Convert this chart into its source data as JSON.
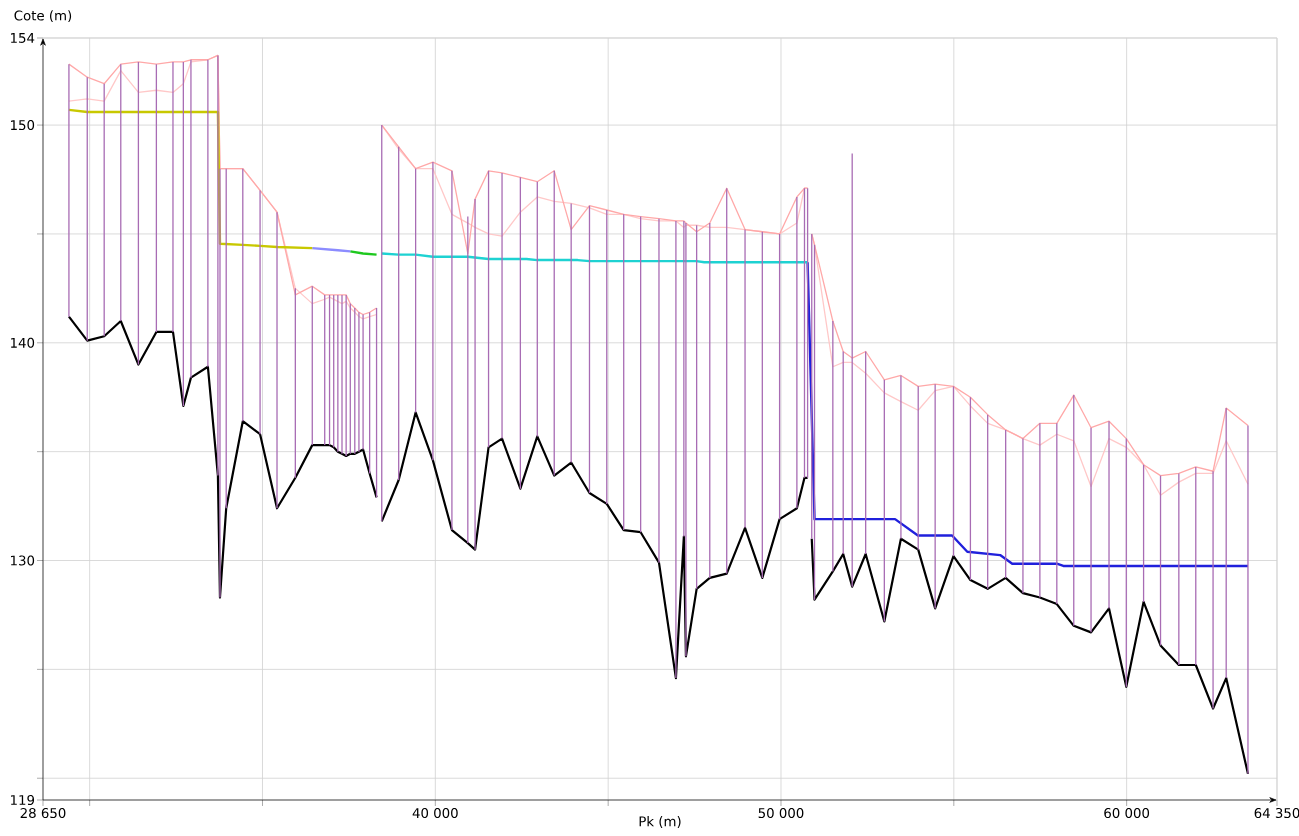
{
  "chart_data": {
    "type": "line",
    "xlabel": "Pk (m)",
    "ylabel": "Cote (m)",
    "xlim": [
      28650,
      64350
    ],
    "ylim": [
      119,
      154
    ],
    "xticks": [
      {
        "value": 28650,
        "label": "28 650"
      },
      {
        "value": 30000,
        "label": null
      },
      {
        "value": 35000,
        "label": null
      },
      {
        "value": 40000,
        "label": "40 000"
      },
      {
        "value": 45000,
        "label": null
      },
      {
        "value": 50000,
        "label": "50 000"
      },
      {
        "value": 55000,
        "label": null
      },
      {
        "value": 60000,
        "label": "60 000"
      },
      {
        "value": 64350,
        "label": "64 350"
      }
    ],
    "yticks": [
      119,
      {
        "value": 120,
        "label": null
      },
      {
        "value": 125,
        "label": null
      },
      130,
      {
        "value": 135,
        "label": null
      },
      140,
      {
        "value": 145,
        "label": null
      },
      150,
      154
    ],
    "grid": true,
    "marker": "none",
    "line_style": "solid",
    "x": [
      29400,
      29930,
      30420,
      30900,
      31410,
      31930,
      32410,
      32710,
      32930,
      33420,
      33710,
      33770,
      33950,
      34430,
      34930,
      35420,
      35950,
      36440,
      36800,
      36940,
      37060,
      37180,
      37300,
      37420,
      37540,
      37670,
      37790,
      37910,
      38100,
      38300,
      38370,
      38450,
      38940,
      39430,
      39930,
      40480,
      40940,
      41150,
      41540,
      41930,
      42460,
      42950,
      43440,
      43930,
      44460,
      44960,
      45450,
      45940,
      46470,
      46960,
      47190,
      47250,
      47560,
      47940,
      48430,
      48960,
      49460,
      49960,
      50460,
      50680,
      50770,
      50830,
      50890,
      50970,
      51500,
      51800,
      52060,
      52450,
      52990,
      53470,
      53970,
      54460,
      54990,
      55480,
      55980,
      56500,
      57000,
      57490,
      57980,
      58470,
      58970,
      59490,
      59990,
      60490,
      60980,
      61510,
      62000,
      62500,
      62880,
      63510
    ],
    "series": [
      {
        "color": "#000000",
        "values": [
          141.2,
          140.1,
          140.3,
          141.0,
          139.0,
          140.5,
          140.5,
          137.1,
          138.4,
          138.9,
          133.9,
          128.3,
          132.4,
          136.4,
          135.8,
          132.4,
          133.8,
          135.3,
          135.3,
          135.3,
          135.2,
          135.0,
          134.9,
          134.8,
          134.9,
          134.9,
          135.0,
          135.1,
          134.0,
          132.9,
          null,
          131.8,
          133.7,
          136.8,
          134.6,
          131.4,
          130.8,
          130.5,
          135.2,
          135.6,
          133.3,
          135.7,
          133.9,
          134.5,
          133.1,
          132.6,
          131.4,
          131.3,
          129.9,
          124.6,
          131.1,
          125.6,
          128.7,
          129.2,
          129.4,
          131.5,
          129.2,
          131.9,
          132.4,
          133.8,
          133.8,
          null,
          131.0,
          128.2,
          129.5,
          130.3,
          128.8,
          130.3,
          127.2,
          131.0,
          130.5,
          127.8,
          130.2,
          129.1,
          128.7,
          129.2,
          128.5,
          128.3,
          128.0,
          127.0,
          126.7,
          127.8,
          124.2,
          128.1,
          126.1,
          125.2,
          125.2,
          123.2,
          124.6,
          120.2
        ]
      },
      {
        "color": "#c8c800",
        "x": [
          29400,
          29930,
          33710,
          33770,
          34430,
          34930,
          35420,
          36440
        ],
        "values": [
          150.7,
          150.6,
          150.6,
          144.55,
          144.5,
          144.45,
          144.4,
          144.35
        ]
      },
      {
        "color": "#8c8cff",
        "x": [
          36440,
          37180,
          37540
        ],
        "values": [
          144.35,
          144.25,
          144.2
        ]
      },
      {
        "color": "#1ec81e",
        "x": [
          37540,
          37910,
          38300
        ],
        "values": [
          144.2,
          144.1,
          144.05
        ]
      },
      {
        "color": "#1ed2d2",
        "x": [
          38450,
          38940,
          39430,
          39930,
          40940,
          41540,
          42640,
          42950,
          44120,
          44460,
          47560,
          47780,
          50770
        ],
        "values": [
          144.1,
          144.05,
          144.05,
          143.95,
          143.95,
          143.85,
          143.85,
          143.8,
          143.8,
          143.75,
          143.75,
          143.7,
          143.7
        ]
      },
      {
        "color": "#2020dc",
        "x": [
          50770,
          50970,
          53300,
          53960,
          54950,
          55390,
          56340,
          56690,
          58000,
          58170,
          63510
        ],
        "values": [
          143.7,
          131.9,
          131.9,
          131.15,
          131.15,
          130.4,
          130.25,
          129.85,
          129.85,
          129.75,
          129.75
        ]
      },
      {
        "color": "#ffa8a8",
        "values": [
          152.8,
          152.2,
          151.9,
          152.8,
          152.9,
          152.8,
          152.9,
          152.9,
          153.0,
          153.0,
          153.2,
          148.0,
          148.0,
          148.0,
          147.0,
          146.0,
          142.2,
          142.6,
          142.2,
          142.2,
          142.2,
          142.2,
          142.2,
          142.2,
          141.8,
          141.6,
          141.4,
          141.3,
          141.4,
          141.6,
          null,
          150.0,
          149.0,
          148.0,
          148.3,
          147.9,
          144.1,
          146.6,
          147.9,
          147.8,
          147.6,
          147.4,
          147.9,
          145.2,
          146.3,
          146.1,
          145.9,
          145.8,
          145.7,
          145.6,
          145.6,
          145.5,
          145.1,
          145.5,
          147.1,
          145.2,
          145.1,
          145.0,
          146.7,
          147.1,
          147.1,
          null,
          145.0,
          144.5,
          141.0,
          139.6,
          139.3,
          139.6,
          138.3,
          138.5,
          138.0,
          138.1,
          138.0,
          137.5,
          136.7,
          136.0,
          135.6,
          136.3,
          136.3,
          137.6,
          136.1,
          136.4,
          135.6,
          134.4,
          133.9,
          134.0,
          134.3,
          134.1,
          137.0,
          136.2
        ]
      },
      {
        "color": "#ffc8c8",
        "values": [
          151.1,
          151.2,
          151.1,
          152.5,
          151.5,
          151.6,
          151.5,
          151.9,
          152.9,
          153.0,
          153.2,
          148.0,
          148.0,
          148.0,
          147.0,
          146.0,
          142.5,
          141.8,
          142.0,
          142.1,
          142.0,
          141.9,
          141.8,
          141.9,
          141.6,
          141.4,
          141.2,
          141.1,
          141.2,
          141.3,
          null,
          150.0,
          148.9,
          148.0,
          148.0,
          145.9,
          145.5,
          145.3,
          145.0,
          144.9,
          146.0,
          146.7,
          146.5,
          146.4,
          146.2,
          145.9,
          145.9,
          145.7,
          145.6,
          145.6,
          145.3,
          145.4,
          145.4,
          145.3,
          145.3,
          145.2,
          145.1,
          145.0,
          145.5,
          147.1,
          147.1,
          null,
          145.0,
          144.5,
          138.9,
          139.1,
          139.1,
          138.6,
          137.7,
          137.3,
          136.9,
          137.8,
          138.0,
          137.1,
          136.3,
          136.0,
          135.6,
          135.3,
          135.8,
          135.5,
          133.4,
          135.6,
          135.2,
          134.4,
          133.0,
          133.6,
          134.0,
          134.0,
          135.5,
          133.5
        ]
      },
      {
        "color": "#a86cb4",
        "x": [
          29400,
          29400
        ],
        "values": [
          141.2,
          152.8
        ]
      },
      {
        "color": "#a86cb4",
        "x": [
          29930,
          29930
        ],
        "values": [
          140.1,
          152.2
        ]
      },
      {
        "color": "#a86cb4",
        "x": [
          30420,
          30420
        ],
        "values": [
          140.3,
          151.9
        ]
      },
      {
        "color": "#a86cb4",
        "x": [
          30900,
          30900
        ],
        "values": [
          141.0,
          152.8
        ]
      },
      {
        "color": "#a86cb4",
        "x": [
          31410,
          31410
        ],
        "values": [
          139.0,
          152.9
        ]
      },
      {
        "color": "#a86cb4",
        "x": [
          31930,
          31930
        ],
        "values": [
          140.5,
          152.8
        ]
      },
      {
        "color": "#a86cb4",
        "x": [
          32410,
          32410
        ],
        "values": [
          140.5,
          152.9
        ]
      },
      {
        "color": "#a86cb4",
        "x": [
          32710,
          32710
        ],
        "values": [
          137.1,
          152.9
        ]
      },
      {
        "color": "#a86cb4",
        "x": [
          32930,
          32930
        ],
        "values": [
          138.4,
          153.0
        ]
      },
      {
        "color": "#a86cb4",
        "x": [
          33420,
          33420
        ],
        "values": [
          138.9,
          153.0
        ]
      },
      {
        "color": "#a86cb4",
        "x": [
          33710,
          33710
        ],
        "values": [
          133.9,
          153.2
        ]
      },
      {
        "color": "#a86cb4",
        "x": [
          33770,
          33770
        ],
        "values": [
          128.3,
          148.0
        ]
      },
      {
        "color": "#a86cb4",
        "x": [
          33950,
          33950
        ],
        "values": [
          132.4,
          148.0
        ]
      },
      {
        "color": "#a86cb4",
        "x": [
          34430,
          34430
        ],
        "values": [
          136.4,
          148.0
        ]
      },
      {
        "color": "#a86cb4",
        "x": [
          34930,
          34930
        ],
        "values": [
          135.8,
          147.0
        ]
      },
      {
        "color": "#a86cb4",
        "x": [
          35420,
          35420
        ],
        "values": [
          132.4,
          146.0
        ]
      },
      {
        "color": "#a86cb4",
        "x": [
          35950,
          35950
        ],
        "values": [
          133.8,
          142.5
        ]
      },
      {
        "color": "#a86cb4",
        "x": [
          36440,
          36440
        ],
        "values": [
          135.3,
          142.6
        ]
      },
      {
        "color": "#a86cb4",
        "x": [
          36800,
          36800
        ],
        "values": [
          135.3,
          142.2
        ]
      },
      {
        "color": "#a86cb4",
        "x": [
          36940,
          36940
        ],
        "values": [
          135.3,
          142.2
        ]
      },
      {
        "color": "#a86cb4",
        "x": [
          37060,
          37060
        ],
        "values": [
          135.2,
          142.2
        ]
      },
      {
        "color": "#a86cb4",
        "x": [
          37180,
          37180
        ],
        "values": [
          135.0,
          142.2
        ]
      },
      {
        "color": "#a86cb4",
        "x": [
          37300,
          37300
        ],
        "values": [
          134.9,
          142.2
        ]
      },
      {
        "color": "#a86cb4",
        "x": [
          37420,
          37420
        ],
        "values": [
          134.8,
          142.2
        ]
      },
      {
        "color": "#a86cb4",
        "x": [
          37540,
          37540
        ],
        "values": [
          134.9,
          141.8
        ]
      },
      {
        "color": "#a86cb4",
        "x": [
          37670,
          37670
        ],
        "values": [
          134.9,
          141.6
        ]
      },
      {
        "color": "#a86cb4",
        "x": [
          37790,
          37790
        ],
        "values": [
          135.0,
          141.4
        ]
      },
      {
        "color": "#a86cb4",
        "x": [
          37910,
          37910
        ],
        "values": [
          135.1,
          141.3
        ]
      },
      {
        "color": "#a86cb4",
        "x": [
          38100,
          38100
        ],
        "values": [
          134.0,
          141.4
        ]
      },
      {
        "color": "#a86cb4",
        "x": [
          38300,
          38300
        ],
        "values": [
          132.9,
          141.6
        ]
      },
      {
        "color": "#a86cb4",
        "x": [
          38450,
          38450
        ],
        "values": [
          131.8,
          150.0
        ]
      },
      {
        "color": "#a86cb4",
        "x": [
          38940,
          38940
        ],
        "values": [
          133.7,
          149.0
        ]
      },
      {
        "color": "#a86cb4",
        "x": [
          39430,
          39430
        ],
        "values": [
          136.8,
          148.0
        ]
      },
      {
        "color": "#a86cb4",
        "x": [
          39930,
          39930
        ],
        "values": [
          134.6,
          148.3
        ]
      },
      {
        "color": "#a86cb4",
        "x": [
          40480,
          40480
        ],
        "values": [
          131.4,
          147.9
        ]
      },
      {
        "color": "#a86cb4",
        "x": [
          40940,
          40940
        ],
        "values": [
          130.8,
          145.8
        ]
      },
      {
        "color": "#a86cb4",
        "x": [
          41150,
          41150
        ],
        "values": [
          130.5,
          146.6
        ]
      },
      {
        "color": "#a86cb4",
        "x": [
          41540,
          41540
        ],
        "values": [
          135.2,
          147.9
        ]
      },
      {
        "color": "#a86cb4",
        "x": [
          41930,
          41930
        ],
        "values": [
          135.6,
          147.8
        ]
      },
      {
        "color": "#a86cb4",
        "x": [
          42460,
          42460
        ],
        "values": [
          133.3,
          147.6
        ]
      },
      {
        "color": "#a86cb4",
        "x": [
          42950,
          42950
        ],
        "values": [
          135.7,
          147.4
        ]
      },
      {
        "color": "#a86cb4",
        "x": [
          43440,
          43440
        ],
        "values": [
          133.9,
          147.9
        ]
      },
      {
        "color": "#a86cb4",
        "x": [
          43930,
          43930
        ],
        "values": [
          134.5,
          146.4
        ]
      },
      {
        "color": "#a86cb4",
        "x": [
          44460,
          44460
        ],
        "values": [
          133.1,
          146.3
        ]
      },
      {
        "color": "#a86cb4",
        "x": [
          44960,
          44960
        ],
        "values": [
          132.6,
          146.1
        ]
      },
      {
        "color": "#a86cb4",
        "x": [
          45450,
          45450
        ],
        "values": [
          131.4,
          145.9
        ]
      },
      {
        "color": "#a86cb4",
        "x": [
          45940,
          45940
        ],
        "values": [
          131.3,
          145.8
        ]
      },
      {
        "color": "#a86cb4",
        "x": [
          46470,
          46470
        ],
        "values": [
          129.9,
          145.7
        ]
      },
      {
        "color": "#a86cb4",
        "x": [
          46960,
          46960
        ],
        "values": [
          124.6,
          145.6
        ]
      },
      {
        "color": "#a86cb4",
        "x": [
          47190,
          47190
        ],
        "values": [
          131.1,
          145.6
        ]
      },
      {
        "color": "#a86cb4",
        "x": [
          47250,
          47250
        ],
        "values": [
          125.6,
          145.5
        ]
      },
      {
        "color": "#a86cb4",
        "x": [
          47560,
          47560
        ],
        "values": [
          128.7,
          145.4
        ]
      },
      {
        "color": "#a86cb4",
        "x": [
          47940,
          47940
        ],
        "values": [
          129.2,
          145.5
        ]
      },
      {
        "color": "#a86cb4",
        "x": [
          48430,
          48430
        ],
        "values": [
          129.4,
          147.1
        ]
      },
      {
        "color": "#a86cb4",
        "x": [
          48960,
          48960
        ],
        "values": [
          131.5,
          145.2
        ]
      },
      {
        "color": "#a86cb4",
        "x": [
          49460,
          49460
        ],
        "values": [
          129.2,
          145.1
        ]
      },
      {
        "color": "#a86cb4",
        "x": [
          49960,
          49960
        ],
        "values": [
          131.9,
          145.0
        ]
      },
      {
        "color": "#a86cb4",
        "x": [
          50460,
          50460
        ],
        "values": [
          132.4,
          146.7
        ]
      },
      {
        "color": "#a86cb4",
        "x": [
          50680,
          50680
        ],
        "values": [
          133.8,
          147.1
        ]
      },
      {
        "color": "#a86cb4",
        "x": [
          50770,
          50770
        ],
        "values": [
          133.8,
          147.1
        ]
      },
      {
        "color": "#a86cb4",
        "x": [
          50890,
          50890
        ],
        "values": [
          131.0,
          145.0
        ]
      },
      {
        "color": "#a86cb4",
        "x": [
          50970,
          50970
        ],
        "values": [
          128.2,
          144.5
        ]
      },
      {
        "color": "#a86cb4",
        "x": [
          51500,
          51500
        ],
        "values": [
          129.5,
          141.0
        ]
      },
      {
        "color": "#a86cb4",
        "x": [
          51800,
          51800
        ],
        "values": [
          130.3,
          139.6
        ]
      },
      {
        "color": "#a86cb4",
        "x": [
          52060,
          52060
        ],
        "values": [
          128.8,
          148.7
        ]
      },
      {
        "color": "#a86cb4",
        "x": [
          52450,
          52450
        ],
        "values": [
          130.3,
          139.6
        ]
      },
      {
        "color": "#a86cb4",
        "x": [
          52990,
          52990
        ],
        "values": [
          127.2,
          138.3
        ]
      },
      {
        "color": "#a86cb4",
        "x": [
          53470,
          53470
        ],
        "values": [
          131.0,
          138.5
        ]
      },
      {
        "color": "#a86cb4",
        "x": [
          53970,
          53970
        ],
        "values": [
          130.5,
          138.0
        ]
      },
      {
        "color": "#a86cb4",
        "x": [
          54460,
          54460
        ],
        "values": [
          127.8,
          138.1
        ]
      },
      {
        "color": "#a86cb4",
        "x": [
          54990,
          54990
        ],
        "values": [
          130.2,
          138.0
        ]
      },
      {
        "color": "#a86cb4",
        "x": [
          55480,
          55480
        ],
        "values": [
          129.1,
          137.5
        ]
      },
      {
        "color": "#a86cb4",
        "x": [
          55980,
          55980
        ],
        "values": [
          128.7,
          136.7
        ]
      },
      {
        "color": "#a86cb4",
        "x": [
          56500,
          56500
        ],
        "values": [
          129.2,
          136.0
        ]
      },
      {
        "color": "#a86cb4",
        "x": [
          57000,
          57000
        ],
        "values": [
          128.5,
          135.6
        ]
      },
      {
        "color": "#a86cb4",
        "x": [
          57490,
          57490
        ],
        "values": [
          128.3,
          136.3
        ]
      },
      {
        "color": "#a86cb4",
        "x": [
          57980,
          57980
        ],
        "values": [
          128.0,
          136.3
        ]
      },
      {
        "color": "#a86cb4",
        "x": [
          58470,
          58470
        ],
        "values": [
          127.0,
          137.6
        ]
      },
      {
        "color": "#a86cb4",
        "x": [
          58970,
          58970
        ],
        "values": [
          126.7,
          136.1
        ]
      },
      {
        "color": "#a86cb4",
        "x": [
          59490,
          59490
        ],
        "values": [
          127.8,
          136.4
        ]
      },
      {
        "color": "#a86cb4",
        "x": [
          59990,
          59990
        ],
        "values": [
          124.2,
          135.6
        ]
      },
      {
        "color": "#a86cb4",
        "x": [
          60490,
          60490
        ],
        "values": [
          128.1,
          134.4
        ]
      },
      {
        "color": "#a86cb4",
        "x": [
          60980,
          60980
        ],
        "values": [
          126.1,
          133.9
        ]
      },
      {
        "color": "#a86cb4",
        "x": [
          61510,
          61510
        ],
        "values": [
          125.2,
          134.0
        ]
      },
      {
        "color": "#a86cb4",
        "x": [
          62000,
          62000
        ],
        "values": [
          125.2,
          134.3
        ]
      },
      {
        "color": "#a86cb4",
        "x": [
          62500,
          62500
        ],
        "values": [
          123.2,
          134.1
        ]
      },
      {
        "color": "#a86cb4",
        "x": [
          62880,
          62880
        ],
        "values": [
          124.6,
          137.0
        ]
      },
      {
        "color": "#a86cb4",
        "x": [
          63510,
          63510
        ],
        "values": [
          120.2,
          136.2
        ]
      }
    ]
  }
}
